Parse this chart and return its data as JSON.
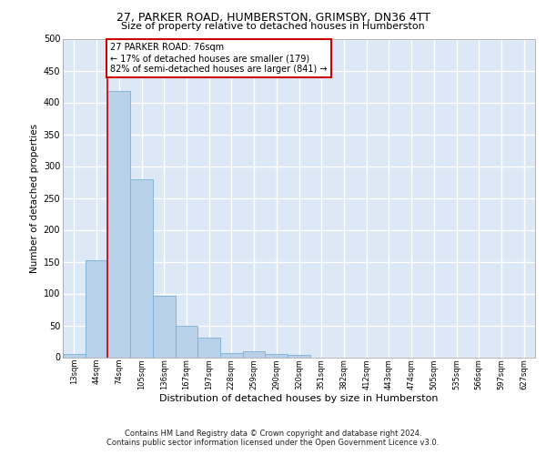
{
  "title_line1": "27, PARKER ROAD, HUMBERSTON, GRIMSBY, DN36 4TT",
  "title_line2": "Size of property relative to detached houses in Humberston",
  "xlabel": "Distribution of detached houses by size in Humberston",
  "ylabel": "Number of detached properties",
  "bar_color": "#b8d0e8",
  "bar_edge_color": "#7aafd4",
  "categories": [
    "13sqm",
    "44sqm",
    "74sqm",
    "105sqm",
    "136sqm",
    "167sqm",
    "197sqm",
    "228sqm",
    "259sqm",
    "290sqm",
    "320sqm",
    "351sqm",
    "382sqm",
    "412sqm",
    "443sqm",
    "474sqm",
    "505sqm",
    "535sqm",
    "566sqm",
    "597sqm",
    "627sqm"
  ],
  "values": [
    5,
    152,
    418,
    280,
    97,
    49,
    31,
    6,
    9,
    5,
    3,
    0,
    0,
    0,
    0,
    0,
    0,
    0,
    0,
    0,
    0
  ],
  "ylim": [
    0,
    500
  ],
  "yticks": [
    0,
    50,
    100,
    150,
    200,
    250,
    300,
    350,
    400,
    450,
    500
  ],
  "property_vline_x": 1.5,
  "annotation_text": "27 PARKER ROAD: 76sqm\n← 17% of detached houses are smaller (179)\n82% of semi-detached houses are larger (841) →",
  "annotation_box_facecolor": "#ffffff",
  "annotation_box_edgecolor": "#cc0000",
  "footer_line1": "Contains HM Land Registry data © Crown copyright and database right 2024.",
  "footer_line2": "Contains public sector information licensed under the Open Government Licence v3.0.",
  "plot_bg_color": "#dce8f5",
  "grid_color": "#ffffff",
  "vline_color": "#cc0000",
  "fig_bg_color": "#ffffff"
}
